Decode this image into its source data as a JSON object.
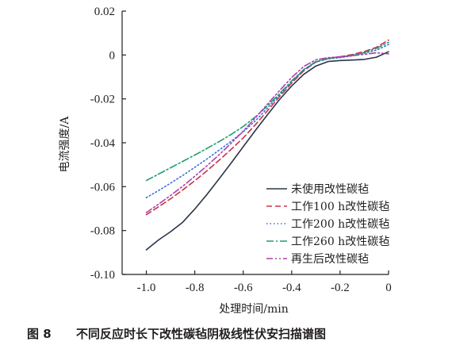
{
  "caption": {
    "number": "图 8",
    "text": "不同反应时长下改性碳毡阴极线性伏安扫描谱图"
  },
  "chart_data": {
    "type": "line",
    "title": "",
    "xlabel": "处理时间/min",
    "ylabel": "电流强度/A",
    "xlim": [
      -1.1,
      0
    ],
    "ylim": [
      -0.1,
      0.02
    ],
    "xticks": [
      -1.0,
      -0.8,
      -0.6,
      -0.4,
      -0.2,
      0
    ],
    "xtick_labels": [
      "-1.0",
      "-0.8",
      "-0.6",
      "-0.4",
      "-0.2",
      "0"
    ],
    "yticks": [
      0.02,
      0,
      -0.02,
      -0.04,
      -0.06,
      -0.08,
      -0.1
    ],
    "ytick_labels": [
      "0.02",
      "0",
      "-0.02",
      "-0.04",
      "-0.06",
      "-0.08",
      "-0.10"
    ],
    "grid": false,
    "legend_position": "bottom-right",
    "series": [
      {
        "name": "未使用改性碳毡",
        "color": "#2b3547",
        "dash": "solid",
        "points": [
          [
            -1.0,
            -0.0888
          ],
          [
            -0.95,
            -0.0843
          ],
          [
            -0.9,
            -0.0805
          ],
          [
            -0.85,
            -0.0762
          ],
          [
            -0.8,
            -0.0702
          ],
          [
            -0.75,
            -0.0636
          ],
          [
            -0.7,
            -0.0565
          ],
          [
            -0.65,
            -0.0492
          ],
          [
            -0.6,
            -0.0418
          ],
          [
            -0.55,
            -0.0344
          ],
          [
            -0.5,
            -0.0272
          ],
          [
            -0.45,
            -0.0203
          ],
          [
            -0.4,
            -0.0141
          ],
          [
            -0.35,
            -0.0088
          ],
          [
            -0.3,
            -0.005
          ],
          [
            -0.25,
            -0.003
          ],
          [
            -0.2,
            -0.0025
          ],
          [
            -0.15,
            -0.0023
          ],
          [
            -0.1,
            -0.002
          ],
          [
            -0.05,
            -0.001
          ],
          [
            0,
            0.0015
          ]
        ]
      },
      {
        "name": "工作100 h改性碳毡",
        "color": "#c8344a",
        "dash": "dashed",
        "points": [
          [
            -1.0,
            -0.0728
          ],
          [
            -0.95,
            -0.0692
          ],
          [
            -0.9,
            -0.0655
          ],
          [
            -0.85,
            -0.0615
          ],
          [
            -0.8,
            -0.0573
          ],
          [
            -0.75,
            -0.0528
          ],
          [
            -0.7,
            -0.048
          ],
          [
            -0.65,
            -0.043
          ],
          [
            -0.6,
            -0.0378
          ],
          [
            -0.55,
            -0.0318
          ],
          [
            -0.5,
            -0.0254
          ],
          [
            -0.45,
            -0.019
          ],
          [
            -0.4,
            -0.0128
          ],
          [
            -0.35,
            -0.0072
          ],
          [
            -0.3,
            -0.0032
          ],
          [
            -0.25,
            -0.0016
          ],
          [
            -0.2,
            -0.0008
          ],
          [
            -0.15,
            0.0002
          ],
          [
            -0.1,
            0.0016
          ],
          [
            -0.05,
            0.0035
          ],
          [
            0,
            0.0068
          ]
        ]
      },
      {
        "name": "工作200 h改性碳毡",
        "color": "#3a6fd8",
        "dash": "dotted",
        "points": [
          [
            -1.0,
            -0.065
          ],
          [
            -0.95,
            -0.0618
          ],
          [
            -0.9,
            -0.0584
          ],
          [
            -0.85,
            -0.0549
          ],
          [
            -0.8,
            -0.0512
          ],
          [
            -0.75,
            -0.0474
          ],
          [
            -0.7,
            -0.0434
          ],
          [
            -0.65,
            -0.0393
          ],
          [
            -0.6,
            -0.035
          ],
          [
            -0.55,
            -0.03
          ],
          [
            -0.5,
            -0.0242
          ],
          [
            -0.45,
            -0.0182
          ],
          [
            -0.4,
            -0.0122
          ],
          [
            -0.35,
            -0.0068
          ],
          [
            -0.3,
            -0.0032
          ],
          [
            -0.25,
            -0.0018
          ],
          [
            -0.2,
            -0.0012
          ],
          [
            -0.15,
            -0.0004
          ],
          [
            -0.1,
            0.0008
          ],
          [
            -0.05,
            0.0022
          ],
          [
            0,
            0.0048
          ]
        ]
      },
      {
        "name": "工作260 h改性碳毡",
        "color": "#1f9e6e",
        "dash": "dashdot",
        "points": [
          [
            -1.0,
            -0.0572
          ],
          [
            -0.95,
            -0.0543
          ],
          [
            -0.9,
            -0.0514
          ],
          [
            -0.85,
            -0.0485
          ],
          [
            -0.8,
            -0.0456
          ],
          [
            -0.75,
            -0.0426
          ],
          [
            -0.7,
            -0.0395
          ],
          [
            -0.65,
            -0.0362
          ],
          [
            -0.6,
            -0.0326
          ],
          [
            -0.55,
            -0.0282
          ],
          [
            -0.5,
            -0.0232
          ],
          [
            -0.45,
            -0.0176
          ],
          [
            -0.4,
            -0.0118
          ],
          [
            -0.35,
            -0.0066
          ],
          [
            -0.3,
            -0.003
          ],
          [
            -0.25,
            -0.0016
          ],
          [
            -0.2,
            -0.001
          ],
          [
            -0.15,
            -0.0002
          ],
          [
            -0.1,
            0.0012
          ],
          [
            -0.05,
            0.003
          ],
          [
            0,
            0.0058
          ]
        ]
      },
      {
        "name": "再生后改性碳毡",
        "color": "#b03fae",
        "dash": "dashdotdot",
        "points": [
          [
            -1.0,
            -0.0718
          ],
          [
            -0.95,
            -0.068
          ],
          [
            -0.9,
            -0.064
          ],
          [
            -0.85,
            -0.0598
          ],
          [
            -0.8,
            -0.0553
          ],
          [
            -0.75,
            -0.0505
          ],
          [
            -0.7,
            -0.0455
          ],
          [
            -0.65,
            -0.0402
          ],
          [
            -0.6,
            -0.0347
          ],
          [
            -0.55,
            -0.0287
          ],
          [
            -0.5,
            -0.0224
          ],
          [
            -0.45,
            -0.0162
          ],
          [
            -0.4,
            -0.0103
          ],
          [
            -0.35,
            -0.0052
          ],
          [
            -0.3,
            -0.0022
          ],
          [
            -0.25,
            -0.0012
          ],
          [
            -0.2,
            -0.0008
          ],
          [
            -0.15,
            -0.0003
          ],
          [
            -0.1,
            0.0003
          ],
          [
            -0.05,
            0.001
          ],
          [
            0,
            0.0005
          ]
        ]
      }
    ]
  }
}
